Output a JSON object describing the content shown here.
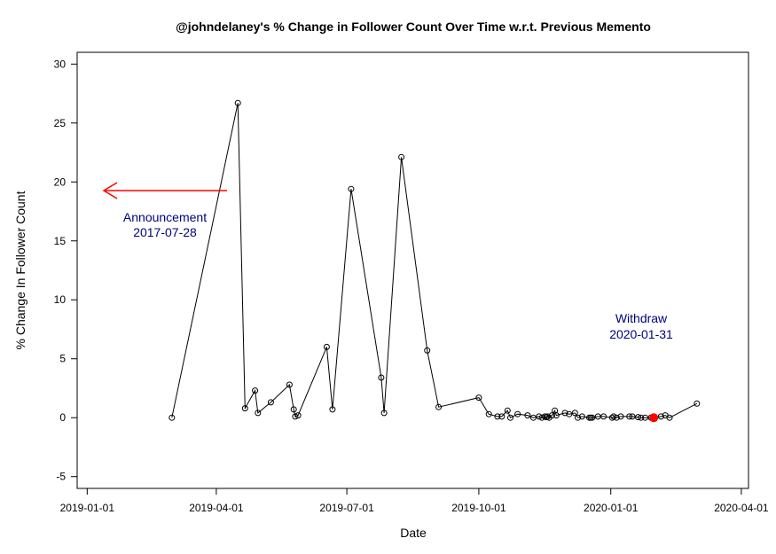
{
  "chart_data": {
    "type": "line",
    "title": "@johndelaney's % Change in Follower Count Over Time w.r.t. Previous Memento",
    "xlabel": "Date",
    "ylabel": "% Change In Follower Count",
    "xlim": [
      "2018-12-25",
      "2020-04-06"
    ],
    "ylim": [
      -6,
      31
    ],
    "x_ticks": [
      "2019-01-01",
      "2019-04-01",
      "2019-07-01",
      "2019-10-01",
      "2020-01-01",
      "2020-04-01"
    ],
    "y_ticks": [
      -5,
      0,
      5,
      10,
      15,
      20,
      25,
      30
    ],
    "grid": false,
    "colors": {
      "line": "#000000",
      "arrow": "#ff0000",
      "annotation": "#000080",
      "highlight": "#ff0000"
    },
    "series": [
      {
        "x": [
          "2019-03-01",
          "2019-04-16",
          "2019-04-21",
          "2019-04-28",
          "2019-04-30",
          "2019-05-09",
          "2019-05-22",
          "2019-05-25",
          "2019-05-26",
          "2019-05-28",
          "2019-06-17",
          "2019-06-21",
          "2019-07-04",
          "2019-07-25",
          "2019-07-27",
          "2019-08-08",
          "2019-08-26",
          "2019-09-03",
          "2019-10-01",
          "2019-10-08",
          "2019-10-14",
          "2019-10-17",
          "2019-10-21",
          "2019-10-23",
          "2019-10-28",
          "2019-11-04",
          "2019-11-08",
          "2019-11-12",
          "2019-11-14",
          "2019-11-16",
          "2019-11-17",
          "2019-11-18",
          "2019-11-19",
          "2019-11-21",
          "2019-11-23",
          "2019-11-24",
          "2019-11-30",
          "2019-12-03",
          "2019-12-07",
          "2019-12-09",
          "2019-12-12",
          "2019-12-17",
          "2019-12-18",
          "2019-12-19",
          "2019-12-23",
          "2019-12-27",
          "2020-01-02",
          "2020-01-03",
          "2020-01-05",
          "2020-01-08",
          "2020-01-14",
          "2020-01-16",
          "2020-01-20",
          "2020-01-22",
          "2020-01-25",
          "2020-01-29",
          "2020-01-31",
          "2020-02-05",
          "2020-02-08",
          "2020-02-11",
          "2020-03-01"
        ],
        "values": [
          0.0,
          26.7,
          0.8,
          2.3,
          0.4,
          1.3,
          2.8,
          0.7,
          0.1,
          0.2,
          6.0,
          0.7,
          19.4,
          3.4,
          0.4,
          22.1,
          5.7,
          0.9,
          1.7,
          0.3,
          0.1,
          0.1,
          0.6,
          0.0,
          0.3,
          0.2,
          0.0,
          0.1,
          0.0,
          0.1,
          0.05,
          0.1,
          0.0,
          0.2,
          0.6,
          0.2,
          0.4,
          0.3,
          0.4,
          0.0,
          0.1,
          0.0,
          0.0,
          0.0,
          0.1,
          0.1,
          0.0,
          0.1,
          0.0,
          0.1,
          0.1,
          0.1,
          0.05,
          0.0,
          0.0,
          0.0,
          0.0,
          0.1,
          0.2,
          0.0,
          1.2
        ]
      }
    ],
    "highlight_point": {
      "x": "2020-01-31",
      "y": 0.0
    },
    "annotations": [
      {
        "text_line1": "Announcement",
        "text_line2": "2017-07-28"
      },
      {
        "text_line1": "Withdraw",
        "text_line2": "2020-01-31"
      }
    ]
  }
}
